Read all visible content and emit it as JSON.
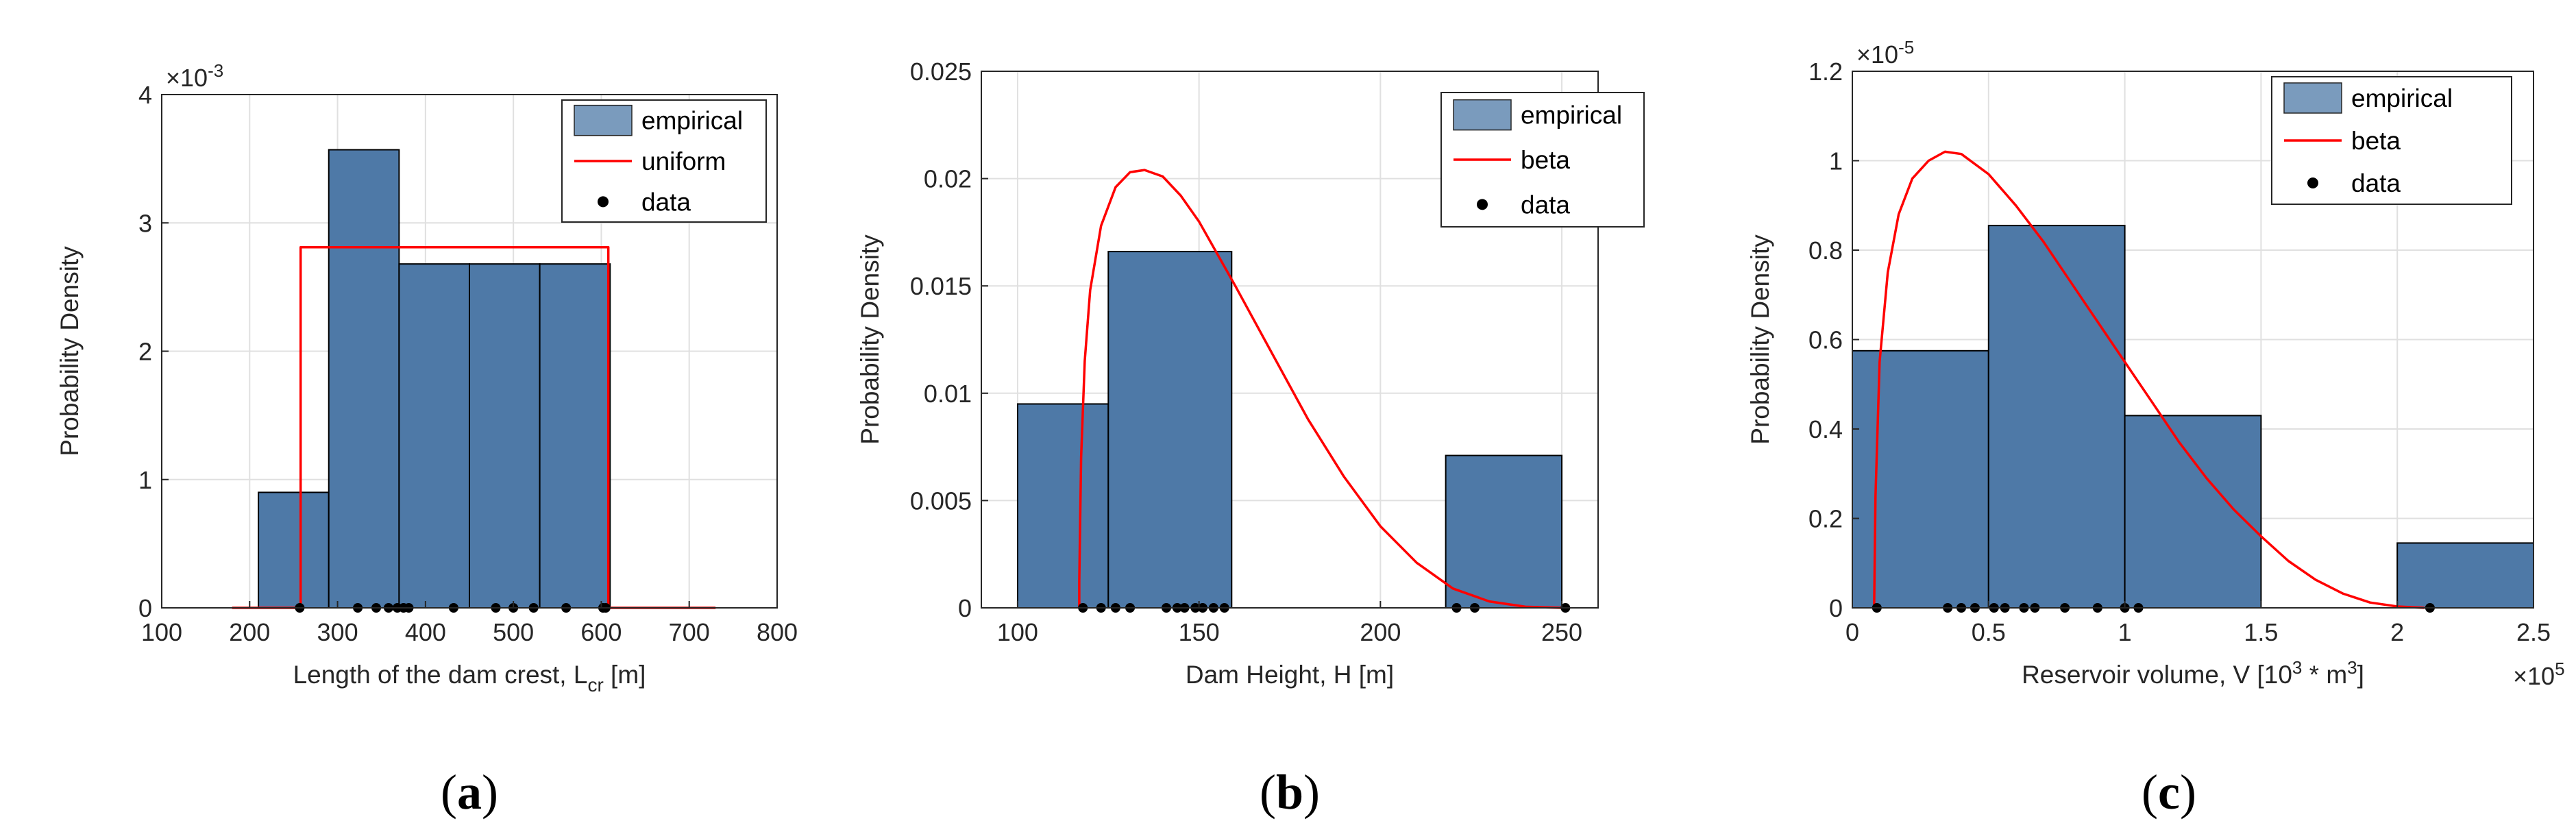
{
  "colors": {
    "bar_fill": "#4e79a7",
    "bar_edge": "#000000",
    "fit_line": "#ff0000",
    "data_point": "#000000",
    "grid": "#e0e0e0",
    "axis": "#262626"
  },
  "chart_data": [
    {
      "type": "bar",
      "panel": "a",
      "caption": "(a)",
      "xlabel": "Length of the dam crest, L",
      "xlabel_sub": "cr",
      "xlabel_suffix": " [m]",
      "ylabel": "Probability Density",
      "xlim": [
        100,
        800
      ],
      "ylim": [
        0,
        4
      ],
      "xticks": [
        100,
        200,
        300,
        400,
        500,
        600,
        700,
        800
      ],
      "yticks": [
        0,
        1,
        2,
        3,
        4
      ],
      "ytick_labels": [
        "0",
        "1",
        "2",
        "3",
        "4"
      ],
      "y_multiplier": "×10",
      "y_multiplier_exp": "-3",
      "x_multiplier": "",
      "x_multiplier_exp": "",
      "bins": [
        {
          "from": 210,
          "to": 290,
          "value": 0.9
        },
        {
          "from": 290,
          "to": 370,
          "value": 3.57
        },
        {
          "from": 370,
          "to": 450,
          "value": 2.68
        },
        {
          "from": 450,
          "to": 530,
          "value": 2.68
        },
        {
          "from": 530,
          "to": 610,
          "value": 2.68
        }
      ],
      "fit": {
        "name": "uniform",
        "points": [
          [
            180,
            0
          ],
          [
            258,
            0
          ],
          [
            258,
            2.81
          ],
          [
            608,
            2.81
          ],
          [
            608,
            0
          ],
          [
            730,
            0
          ]
        ]
      },
      "data_points": [
        257,
        323,
        344,
        358,
        368,
        375,
        381,
        432,
        480,
        500,
        523,
        560,
        602,
        605
      ],
      "legend": [
        "empirical",
        "uniform",
        "data"
      ]
    },
    {
      "type": "bar",
      "panel": "b",
      "caption": "(b)",
      "xlabel": "Dam Height, H [m]",
      "xlabel_sub": "",
      "xlabel_suffix": "",
      "ylabel": "Probability Density",
      "xlim": [
        90,
        260
      ],
      "ylim": [
        0,
        0.025
      ],
      "xticks": [
        100,
        150,
        200,
        250
      ],
      "yticks": [
        0,
        0.005,
        0.01,
        0.015,
        0.02,
        0.025
      ],
      "ytick_labels": [
        "0",
        "0.005",
        "0.01",
        "0.015",
        "0.02",
        "0.025"
      ],
      "y_multiplier": "",
      "y_multiplier_exp": "",
      "x_multiplier": "",
      "x_multiplier_exp": "",
      "bins": [
        {
          "from": 100,
          "to": 125,
          "value": 0.0095
        },
        {
          "from": 125,
          "to": 159,
          "value": 0.0166
        },
        {
          "from": 218,
          "to": 250,
          "value": 0.0071
        }
      ],
      "fit": {
        "name": "beta",
        "points": [
          [
            117,
            0
          ],
          [
            117,
            0.0012
          ],
          [
            117.5,
            0.007
          ],
          [
            118.5,
            0.0115
          ],
          [
            120,
            0.0148
          ],
          [
            123,
            0.0178
          ],
          [
            127,
            0.0196
          ],
          [
            131,
            0.0203
          ],
          [
            135,
            0.0204
          ],
          [
            140,
            0.0201
          ],
          [
            145,
            0.0192
          ],
          [
            150,
            0.018
          ],
          [
            160,
            0.015
          ],
          [
            170,
            0.0119
          ],
          [
            180,
            0.0088
          ],
          [
            190,
            0.0061
          ],
          [
            200,
            0.0038
          ],
          [
            210,
            0.0021
          ],
          [
            220,
            0.0009
          ],
          [
            230,
            0.0003
          ],
          [
            240,
            5e-05
          ],
          [
            250,
            0
          ]
        ]
      },
      "data_points": [
        118,
        123,
        127,
        131,
        141,
        144,
        146,
        149,
        151,
        154,
        157,
        221,
        226,
        251
      ],
      "legend": [
        "empirical",
        "beta",
        "data"
      ]
    },
    {
      "type": "bar",
      "panel": "c",
      "caption": "(c)",
      "xlabel": "Reservoir volume, V [10",
      "xlabel_sub": "",
      "xlabel_suffix": "",
      "ylabel": "Probability Density",
      "xlim": [
        0,
        2.5
      ],
      "ylim": [
        0,
        1.2
      ],
      "xticks": [
        0,
        0.5,
        1,
        1.5,
        2,
        2.5
      ],
      "yticks": [
        0,
        0.2,
        0.4,
        0.6,
        0.8,
        1,
        1.2
      ],
      "ytick_labels": [
        "0",
        "0.2",
        "0.4",
        "0.6",
        "0.8",
        "1",
        "1.2"
      ],
      "y_multiplier": "×10",
      "y_multiplier_exp": "-5",
      "x_multiplier": "×10",
      "x_multiplier_exp": "5",
      "bins": [
        {
          "from": 0,
          "to": 0.5,
          "value": 0.575
        },
        {
          "from": 0.5,
          "to": 1.0,
          "value": 0.855
        },
        {
          "from": 1.0,
          "to": 1.5,
          "value": 0.43
        },
        {
          "from": 2.0,
          "to": 2.5,
          "value": 0.145
        }
      ],
      "fit": {
        "name": "beta",
        "points": [
          [
            0.08,
            0
          ],
          [
            0.085,
            0.25
          ],
          [
            0.1,
            0.55
          ],
          [
            0.13,
            0.75
          ],
          [
            0.17,
            0.88
          ],
          [
            0.22,
            0.96
          ],
          [
            0.28,
            1.0
          ],
          [
            0.34,
            1.02
          ],
          [
            0.4,
            1.015
          ],
          [
            0.5,
            0.97
          ],
          [
            0.6,
            0.9
          ],
          [
            0.7,
            0.82
          ],
          [
            0.8,
            0.73
          ],
          [
            0.9,
            0.64
          ],
          [
            1.0,
            0.55
          ],
          [
            1.1,
            0.46
          ],
          [
            1.2,
            0.37
          ],
          [
            1.3,
            0.29
          ],
          [
            1.4,
            0.22
          ],
          [
            1.5,
            0.16
          ],
          [
            1.6,
            0.105
          ],
          [
            1.7,
            0.063
          ],
          [
            1.8,
            0.032
          ],
          [
            1.9,
            0.012
          ],
          [
            2.0,
            0.003
          ],
          [
            2.1,
            0
          ]
        ]
      },
      "data_points": [
        0.09,
        0.35,
        0.4,
        0.45,
        0.52,
        0.56,
        0.63,
        0.67,
        0.78,
        0.9,
        1.0,
        1.05,
        2.12
      ],
      "legend": [
        "empirical",
        "beta",
        "data"
      ]
    }
  ]
}
